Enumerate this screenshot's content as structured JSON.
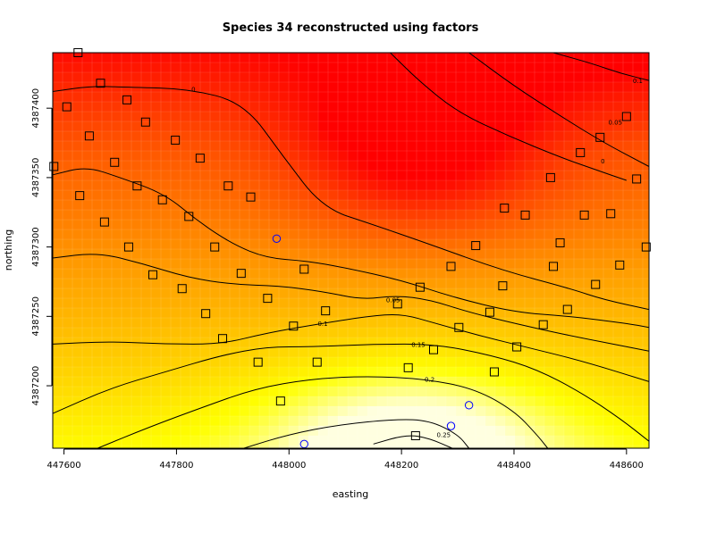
{
  "chart_data": {
    "type": "heatmap",
    "title": "Species 34 reconstructed using factors",
    "xlabel": "easting",
    "ylabel": "northing",
    "xlim": [
      447580,
      448640
    ],
    "ylim": [
      4387155,
      4387440
    ],
    "x_ticks": [
      447600,
      447800,
      448000,
      448200,
      448400,
      448600
    ],
    "y_ticks": [
      4387200,
      4387250,
      4387300,
      4387350,
      4387400
    ],
    "x_tick_labels": [
      "447600",
      "447800",
      "448000",
      "448200",
      "448400",
      "448600"
    ],
    "y_tick_labels": [
      "4387200",
      "4387250",
      "4387300",
      "4387350",
      "4387400"
    ],
    "grid": true,
    "colormap": [
      "#ff0000",
      "#ff4500",
      "#ff8000",
      "#ffc000",
      "#ffff00",
      "#ffffe0"
    ],
    "contours": [
      {
        "level_label": "0",
        "points": [
          [
            447580,
            4387412
          ],
          [
            447650,
            4387416
          ],
          [
            447720,
            4387415
          ],
          [
            447820,
            4387414
          ],
          [
            447920,
            4387404
          ],
          [
            447990,
            4387365
          ],
          [
            448060,
            4387328
          ],
          [
            448150,
            4387316
          ],
          [
            448250,
            4387302
          ],
          [
            448380,
            4387283
          ],
          [
            448500,
            4387270
          ],
          [
            448560,
            4387262
          ],
          [
            448640,
            4387255
          ]
        ],
        "labels": [
          {
            "text": "0",
            "x": 447830,
            "y": 4387414
          }
        ]
      },
      {
        "level_label": "0",
        "points": [
          [
            447580,
            4387352
          ],
          [
            447640,
            4387358
          ],
          [
            447700,
            4387350
          ],
          [
            447780,
            4387338
          ],
          [
            447840,
            4387318
          ],
          [
            447900,
            4387302
          ],
          [
            447960,
            4387292
          ],
          [
            448030,
            4387290
          ],
          [
            448100,
            4387285
          ],
          [
            448200,
            4387276
          ],
          [
            448290,
            4387264
          ],
          [
            448400,
            4387253
          ],
          [
            448500,
            4387250
          ],
          [
            448600,
            4387245
          ],
          [
            448640,
            4387242
          ]
        ],
        "labels": []
      },
      {
        "level_label": "0.05",
        "points": [
          [
            448180,
            4387440
          ],
          [
            448230,
            4387420
          ],
          [
            448300,
            4387397
          ],
          [
            448390,
            4387380
          ],
          [
            448480,
            4387365
          ],
          [
            448550,
            4387355
          ],
          [
            448600,
            4387348
          ]
        ],
        "labels": [
          {
            "text": "0.05",
            "x": 448580,
            "y": 4387390
          }
        ]
      },
      {
        "level_label": "0",
        "points": [
          [
            448320,
            4387440
          ],
          [
            448400,
            4387416
          ],
          [
            448480,
            4387395
          ],
          [
            448560,
            4387375
          ],
          [
            448640,
            4387358
          ]
        ],
        "labels": [
          {
            "text": "0",
            "x": 448558,
            "y": 4387362
          }
        ]
      },
      {
        "level_label": "0.1",
        "points": [
          [
            448470,
            4387440
          ],
          [
            448540,
            4387432
          ],
          [
            448590,
            4387425
          ],
          [
            448640,
            4387420
          ]
        ],
        "labels": [
          {
            "text": "0.1",
            "x": 448620,
            "y": 4387420
          }
        ]
      },
      {
        "level_label": "0.05",
        "points": [
          [
            447580,
            4387292
          ],
          [
            447660,
            4387296
          ],
          [
            447740,
            4387288
          ],
          [
            447820,
            4387278
          ],
          [
            447900,
            4387273
          ],
          [
            447980,
            4387272
          ],
          [
            448060,
            4387268
          ],
          [
            448130,
            4387262
          ],
          [
            448190,
            4387265
          ],
          [
            448250,
            4387262
          ],
          [
            448320,
            4387253
          ],
          [
            448400,
            4387245
          ],
          [
            448500,
            4387236
          ],
          [
            448640,
            4387225
          ]
        ],
        "labels": [
          {
            "text": "0.05",
            "x": 448185,
            "y": 4387262
          }
        ]
      },
      {
        "level_label": "0.1",
        "points": [
          [
            447580,
            4387230
          ],
          [
            447680,
            4387232
          ],
          [
            447780,
            4387230
          ],
          [
            447880,
            4387230
          ],
          [
            447960,
            4387238
          ],
          [
            448060,
            4387245
          ],
          [
            448140,
            4387250
          ],
          [
            448200,
            4387252
          ],
          [
            448260,
            4387245
          ],
          [
            448340,
            4387236
          ],
          [
            448420,
            4387228
          ],
          [
            448520,
            4387218
          ],
          [
            448640,
            4387203
          ]
        ],
        "labels": [
          {
            "text": "0.1",
            "x": 448060,
            "y": 4387245
          }
        ]
      },
      {
        "level_label": "0.15",
        "points": [
          [
            447580,
            4387180
          ],
          [
            447680,
            4387198
          ],
          [
            447780,
            4387210
          ],
          [
            447880,
            4387222
          ],
          [
            447960,
            4387228
          ],
          [
            448040,
            4387228
          ],
          [
            448150,
            4387230
          ],
          [
            448260,
            4387230
          ],
          [
            448360,
            4387222
          ],
          [
            448440,
            4387212
          ],
          [
            448520,
            4387195
          ],
          [
            448590,
            4387176
          ],
          [
            448640,
            4387160
          ]
        ],
        "labels": [
          {
            "text": "0.15",
            "x": 448230,
            "y": 4387230
          }
        ]
      },
      {
        "level_label": "0.2",
        "points": [
          [
            447660,
            4387155
          ],
          [
            447750,
            4387170
          ],
          [
            447850,
            4387185
          ],
          [
            447940,
            4387198
          ],
          [
            448040,
            4387205
          ],
          [
            448140,
            4387207
          ],
          [
            448240,
            4387205
          ],
          [
            448330,
            4387198
          ],
          [
            448400,
            4387182
          ],
          [
            448440,
            4387165
          ],
          [
            448460,
            4387155
          ]
        ],
        "labels": [
          {
            "text": "0.2",
            "x": 448250,
            "y": 4387205
          }
        ]
      },
      {
        "level_label": "0.25",
        "points": [
          [
            447920,
            4387155
          ],
          [
            448000,
            4387165
          ],
          [
            448090,
            4387172
          ],
          [
            448190,
            4387176
          ],
          [
            448250,
            4387175
          ],
          [
            448300,
            4387165
          ],
          [
            448320,
            4387155
          ]
        ],
        "labels": [
          {
            "text": "0.25",
            "x": 448275,
            "y": 4387165
          }
        ]
      },
      {
        "level_label": "",
        "points": [
          [
            448150,
            4387158
          ],
          [
            448210,
            4387165
          ],
          [
            448250,
            4387162
          ],
          [
            448290,
            4387155
          ]
        ],
        "labels": []
      }
    ],
    "squares": [
      [
        447625,
        4387440
      ],
      [
        447665,
        4387418
      ],
      [
        447605,
        4387401
      ],
      [
        447645,
        4387380
      ],
      [
        447712,
        4387406
      ],
      [
        447745,
        4387390
      ],
      [
        447690,
        4387361
      ],
      [
        447582,
        4387358
      ],
      [
        447628,
        4387337
      ],
      [
        447730,
        4387344
      ],
      [
        447798,
        4387377
      ],
      [
        447842,
        4387364
      ],
      [
        447775,
        4387334
      ],
      [
        447892,
        4387344
      ],
      [
        447672,
        4387318
      ],
      [
        447715,
        4387300
      ],
      [
        447822,
        4387322
      ],
      [
        447932,
        4387336
      ],
      [
        447758,
        4387280
      ],
      [
        447868,
        4387300
      ],
      [
        447810,
        4387270
      ],
      [
        447915,
        4387281
      ],
      [
        447852,
        4387252
      ],
      [
        447962,
        4387263
      ],
      [
        448027,
        4387284
      ],
      [
        448065,
        4387254
      ],
      [
        447882,
        4387234
      ],
      [
        447945,
        4387217
      ],
      [
        448008,
        4387243
      ],
      [
        447985,
        4387189
      ],
      [
        448050,
        4387217
      ],
      [
        448193,
        4387259
      ],
      [
        448233,
        4387271
      ],
      [
        448212,
        4387213
      ],
      [
        448257,
        4387226
      ],
      [
        448225,
        4387164
      ],
      [
        448288,
        4387286
      ],
      [
        448302,
        4387242
      ],
      [
        448332,
        4387301
      ],
      [
        448357,
        4387253
      ],
      [
        448365,
        4387210
      ],
      [
        448380,
        4387272
      ],
      [
        448405,
        4387228
      ],
      [
        448383,
        4387328
      ],
      [
        448420,
        4387323
      ],
      [
        448470,
        4387286
      ],
      [
        448465,
        4387350
      ],
      [
        448452,
        4387244
      ],
      [
        448482,
        4387303
      ],
      [
        448495,
        4387255
      ],
      [
        448518,
        4387368
      ],
      [
        448525,
        4387323
      ],
      [
        448545,
        4387273
      ],
      [
        448553,
        4387379
      ],
      [
        448572,
        4387324
      ],
      [
        448588,
        4387287
      ],
      [
        448600,
        4387394
      ],
      [
        448618,
        4387349
      ],
      [
        448635,
        4387300
      ]
    ],
    "circles": [
      [
        447978,
        4387306
      ],
      [
        448027,
        4387158
      ],
      [
        448288,
        4387171
      ],
      [
        448320,
        4387186
      ]
    ],
    "contour_label_color": "#000000",
    "square_color": "#000000",
    "circle_color": "#0000ff"
  }
}
